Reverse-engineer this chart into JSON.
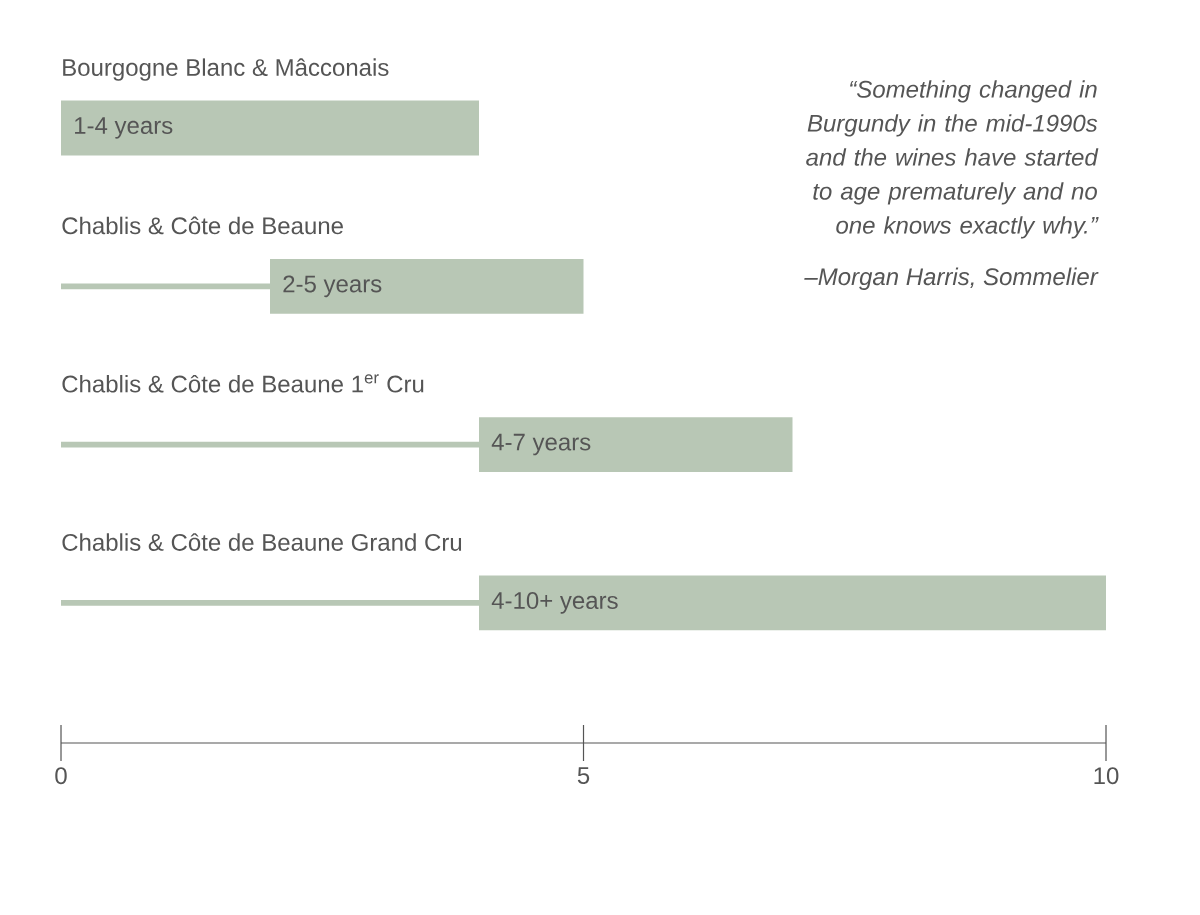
{
  "chart_data": {
    "type": "bar",
    "orientation": "horizontal",
    "stacked": true,
    "categories": [
      "Bourgogne Blanc & Mâcconais",
      "Chablis & Côte de Beaune",
      "Chablis & Côte de Beaune 1$^{er}$ Cru",
      "Chablis & Côte de Beaune Grand Cru"
    ],
    "series": [
      {
        "color": "#b8c7b5",
        "values": [
          null,
          2,
          4,
          4
        ]
      },
      {
        "color": "#b8c7b5",
        "values": [
          4,
          3,
          3,
          6
        ],
        "value_labels": [
          "1-4 years",
          "2-5 years",
          "4-7 years",
          "4-10+ years"
        ]
      }
    ],
    "xlim": [
      0,
      10
    ],
    "xticks": [
      0,
      5,
      10
    ],
    "grid": false,
    "annotations": [
      "“Something changed in Burgundy in the mid-1990s and the wines have started to age prematurely and no one knows exactly why.”",
      "–Morgan Harris, Sommelier"
    ]
  }
}
